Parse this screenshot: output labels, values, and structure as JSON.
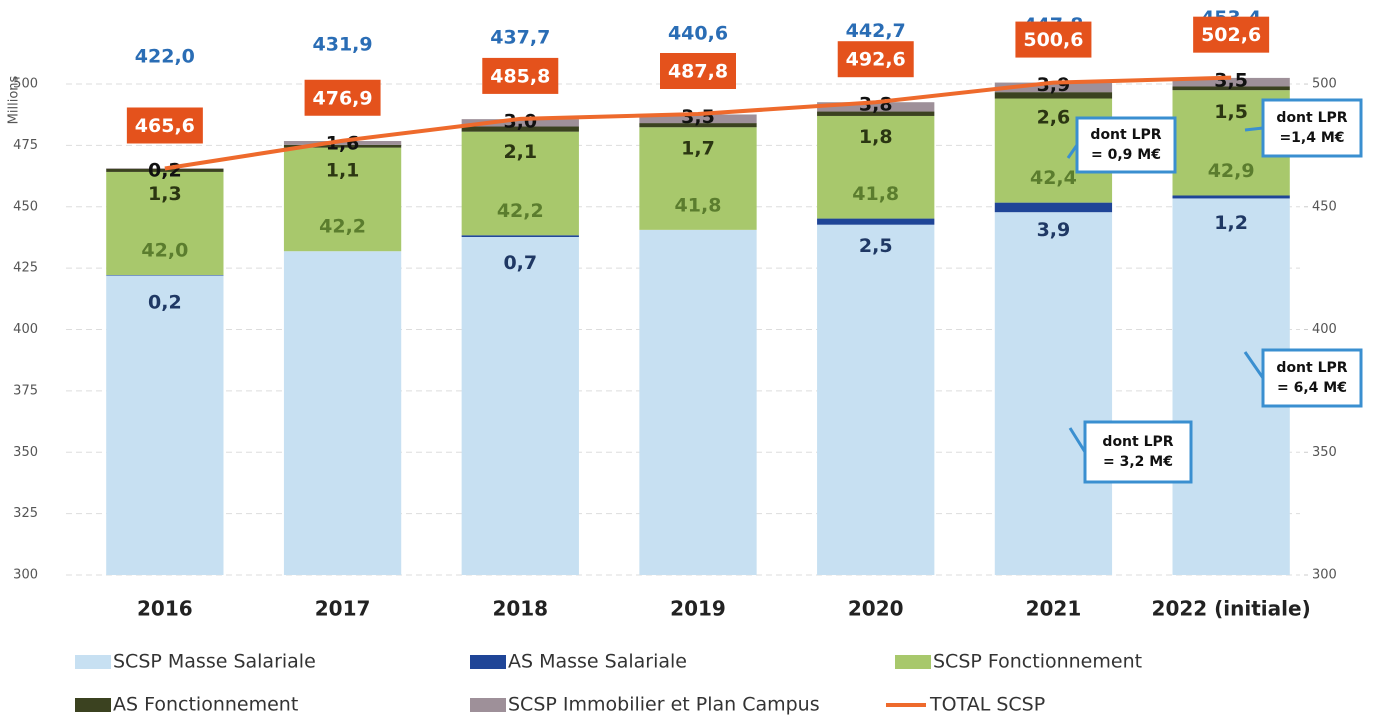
{
  "chart_data": {
    "type": "bar",
    "stacked": true,
    "y_axis_label": "Millions",
    "categories": [
      "2016",
      "2017",
      "2018",
      "2019",
      "2020",
      "2021",
      "2022 (initiale)"
    ],
    "series": [
      {
        "name": "SCSP Masse Salariale",
        "color": "#c7e0f2",
        "label_color": "#2a6db5",
        "values": [
          422.0,
          431.9,
          437.7,
          440.6,
          442.7,
          447.8,
          453.4
        ],
        "value_labels": [
          "422,0",
          "431,9",
          "437,7",
          "440,6",
          "442,7",
          "447,8",
          "453,4"
        ]
      },
      {
        "name": "AS Masse Salariale",
        "color": "#1f4597",
        "label_color": "#1f3864",
        "values": [
          0.2,
          null,
          0.7,
          null,
          2.5,
          3.9,
          1.2
        ],
        "value_labels": [
          "0,2",
          null,
          "0,7",
          null,
          "2,5",
          "3,9",
          "1,2"
        ]
      },
      {
        "name": "SCSP Fonctionnement",
        "color": "#a8c86c",
        "label_color": "#5b7d2e",
        "values": [
          42.0,
          42.2,
          42.2,
          41.8,
          41.8,
          42.4,
          42.9
        ],
        "value_labels": [
          "42,0",
          "42,2",
          "42,2",
          "41,8",
          "41,8",
          "42,4",
          "42,9"
        ]
      },
      {
        "name": "AS  Fonctionnement",
        "color": "#3b4220",
        "label_color": "#2b3612",
        "values": [
          1.3,
          1.1,
          2.1,
          1.7,
          1.8,
          2.6,
          1.5
        ],
        "value_labels": [
          "1,3",
          "1,1",
          "2,1",
          "1,7",
          "1,8",
          "2,6",
          "1,5"
        ]
      },
      {
        "name": "SCSP Immobilier et Plan Campus",
        "color": "#9e9099",
        "label_color": "#111",
        "values": [
          0.2,
          1.6,
          3.0,
          3.5,
          3.8,
          3.9,
          3.5
        ],
        "value_labels": [
          "0,2",
          "1,6",
          "3,0",
          "3,5",
          "3,8",
          "3,9",
          "3,5"
        ]
      }
    ],
    "line": {
      "name": "TOTAL SCSP",
      "color": "#ee6a2c",
      "box_color": "#e4521c",
      "values": [
        465.6,
        476.9,
        485.8,
        487.8,
        492.6,
        500.6,
        502.6
      ],
      "value_labels": [
        "465,6",
        "476,9",
        "485,8",
        "487,8",
        "492,6",
        "500,6",
        "502,6"
      ]
    },
    "annotations": [
      {
        "lines": [
          "dont LPR",
          "= 0,9 M€"
        ]
      },
      {
        "lines": [
          "dont LPR",
          "=1,4 M€"
        ]
      },
      {
        "lines": [
          "dont LPR",
          "= 6,4 M€"
        ]
      },
      {
        "lines": [
          "dont LPR",
          "= 3,2 M€"
        ]
      }
    ],
    "ylim": [
      300,
      510
    ],
    "yticks": [
      300,
      325,
      350,
      375,
      400,
      425,
      450,
      475,
      500
    ],
    "y2lim": [
      300,
      510
    ],
    "y2ticks": [
      300,
      350,
      400,
      450,
      500
    ],
    "grid": true
  }
}
